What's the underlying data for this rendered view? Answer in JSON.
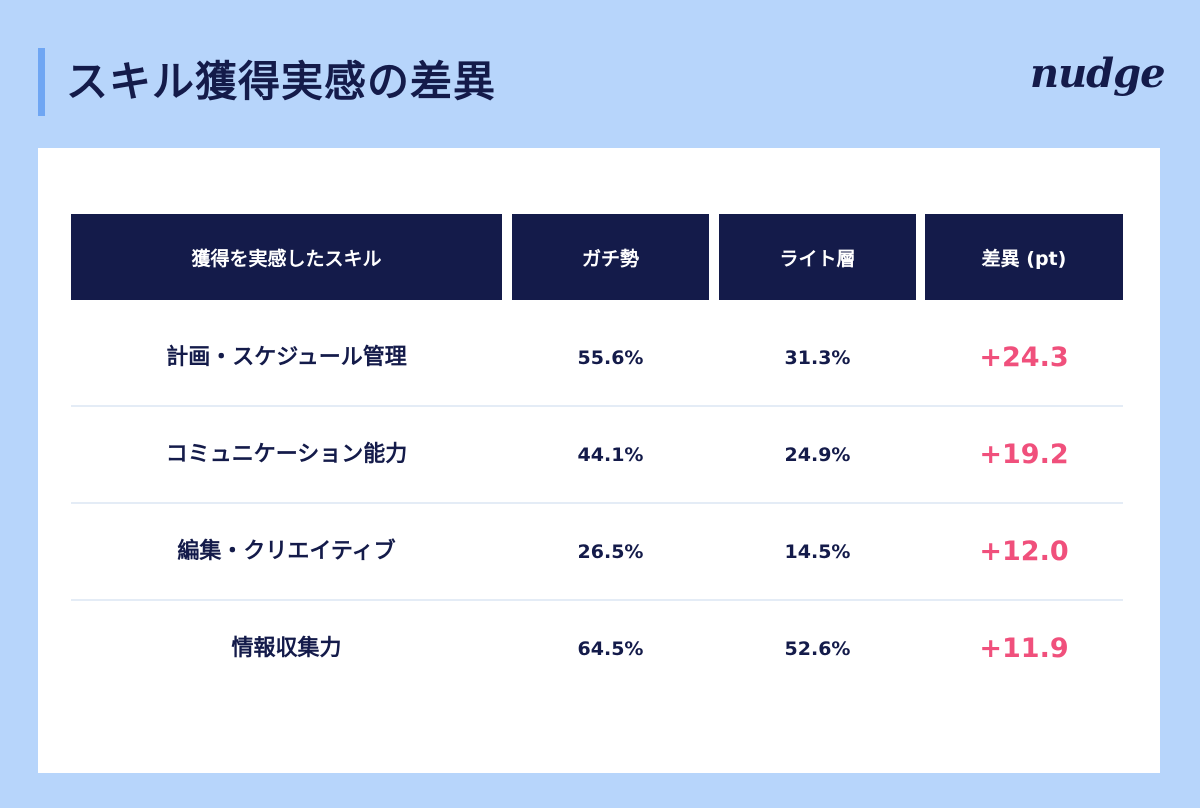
{
  "header": {
    "title": "スキル獲得実感の差異",
    "logo": "nudge"
  },
  "chart_data": {
    "type": "table",
    "columns": [
      "獲得を実感したスキル",
      "ガチ勢",
      "ライト層",
      "差異 (pt)"
    ],
    "rows": [
      {
        "skill": "計画・スケジュール管理",
        "gachi": "55.6%",
        "light": "31.3%",
        "diff": "+24.3"
      },
      {
        "skill": "コミュニケーション能力",
        "gachi": "44.1%",
        "light": "24.9%",
        "diff": "+19.2"
      },
      {
        "skill": "編集・クリエイティブ",
        "gachi": "26.5%",
        "light": "14.5%",
        "diff": "+12.0"
      },
      {
        "skill": "情報収集力",
        "gachi": "64.5%",
        "light": "52.6%",
        "diff": "+11.9"
      }
    ],
    "colors": {
      "header_bg": "#141b4a",
      "diff_text": "#f0507c",
      "page_bg": "#b7d5fb"
    }
  }
}
